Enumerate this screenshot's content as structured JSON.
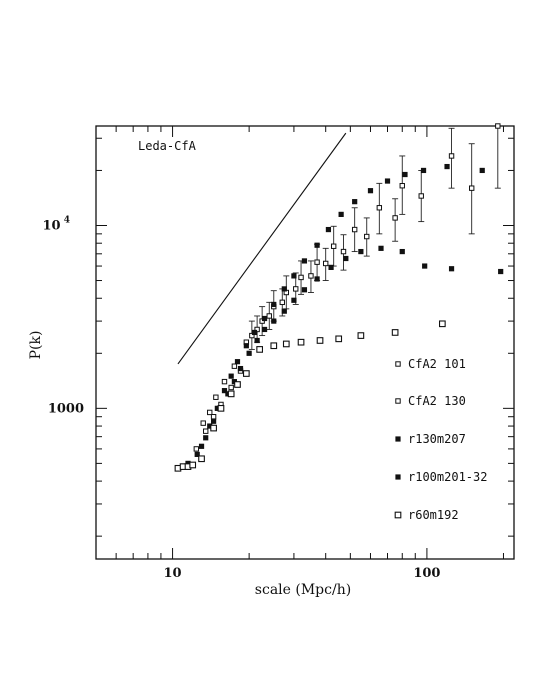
{
  "chart_data": {
    "type": "scatter",
    "title": "",
    "annotation": "Leda-CfA",
    "xlabel": "scale (Mpc/h)",
    "ylabel": "P(k)",
    "xscale": "log",
    "yscale": "log",
    "xlim": [
      5,
      220
    ],
    "ylim": [
      150,
      35000
    ],
    "x_ticks": [
      {
        "value": 10,
        "label": "10"
      },
      {
        "value": 100,
        "label": "100"
      }
    ],
    "y_ticks": [
      {
        "value": 1000,
        "label": "1000"
      },
      {
        "value": 10000,
        "label": "10",
        "exponent": "4"
      }
    ],
    "grid": false,
    "legend_position": "lower-right",
    "reference_line": {
      "x": [
        10.5,
        48
      ],
      "y": [
        1750,
        32000
      ]
    },
    "series": [
      {
        "name": "CfA2 101",
        "marker": "open-square-small",
        "points": [
          [
            13.2,
            830
          ],
          [
            14.0,
            950
          ],
          [
            14.8,
            1150
          ],
          [
            16.0,
            1400
          ],
          [
            17.5,
            1700
          ],
          [
            19.5,
            2300
          ],
          [
            21.5,
            2700
          ],
          [
            24.0,
            3200
          ],
          [
            27.0,
            3800
          ],
          [
            30.5,
            4500
          ],
          [
            35.0,
            5300
          ],
          [
            40.0,
            6200
          ],
          [
            47.0,
            7200
          ],
          [
            58.0,
            8700
          ],
          [
            75.0,
            11000
          ],
          [
            95.0,
            14500
          ],
          [
            125.0,
            24000
          ],
          [
            150.0,
            16000
          ],
          [
            190.0,
            35000
          ]
        ],
        "error_bars": [
          [
            21.5,
            2300,
            3200
          ],
          [
            24.0,
            2700,
            3800
          ],
          [
            27.0,
            3200,
            4500
          ],
          [
            30.5,
            3700,
            5500
          ],
          [
            35.0,
            4300,
            6400
          ],
          [
            40.0,
            5000,
            7500
          ],
          [
            47.0,
            5700,
            8900
          ],
          [
            58.0,
            6800,
            11000
          ],
          [
            75.0,
            8200,
            14000
          ],
          [
            95.0,
            10500,
            20000
          ],
          [
            125.0,
            16000,
            34000
          ],
          [
            150.0,
            9000,
            28000
          ],
          [
            190.0,
            16000,
            60000
          ]
        ]
      },
      {
        "name": "CfA2 130",
        "marker": "open-square-small",
        "points": [
          [
            12.4,
            600
          ],
          [
            13.5,
            750
          ],
          [
            14.5,
            900
          ],
          [
            15.5,
            1050
          ],
          [
            17.0,
            1300
          ],
          [
            18.5,
            1600
          ],
          [
            20.5,
            2500
          ],
          [
            22.5,
            3000
          ],
          [
            25.0,
            3600
          ],
          [
            28.0,
            4300
          ],
          [
            32.0,
            5200
          ],
          [
            37.0,
            6300
          ],
          [
            43.0,
            7700
          ],
          [
            52.0,
            9500
          ],
          [
            65.0,
            12500
          ],
          [
            80.0,
            16500
          ]
        ],
        "error_bars": [
          [
            20.5,
            2100,
            3000
          ],
          [
            22.5,
            2500,
            3600
          ],
          [
            25.0,
            3000,
            4400
          ],
          [
            28.0,
            3500,
            5300
          ],
          [
            32.0,
            4200,
            6400
          ],
          [
            37.0,
            5000,
            7900
          ],
          [
            43.0,
            6000,
            9900
          ],
          [
            52.0,
            7200,
            12500
          ],
          [
            65.0,
            9000,
            17000
          ],
          [
            80.0,
            11500,
            24000
          ]
        ]
      },
      {
        "name": "r130m207",
        "marker": "filled-square",
        "points": [
          [
            13.0,
            620
          ],
          [
            14.0,
            800
          ],
          [
            15.0,
            1000
          ],
          [
            16.0,
            1250
          ],
          [
            17.0,
            1500
          ],
          [
            18.0,
            1800
          ],
          [
            19.5,
            2200
          ],
          [
            21.0,
            2600
          ],
          [
            23.0,
            3100
          ],
          [
            25.0,
            3700
          ],
          [
            27.5,
            4500
          ],
          [
            30.0,
            5300
          ],
          [
            33.0,
            6400
          ],
          [
            37.0,
            7800
          ],
          [
            41.0,
            9500
          ],
          [
            46.0,
            11500
          ],
          [
            52.0,
            13500
          ],
          [
            60.0,
            15500
          ],
          [
            70.0,
            17500
          ],
          [
            82.0,
            19000
          ],
          [
            97.0,
            20000
          ],
          [
            120.0,
            21000
          ],
          [
            165.0,
            20000
          ]
        ]
      },
      {
        "name": "r100m201-32",
        "marker": "filled-square",
        "points": [
          [
            11.5,
            500
          ],
          [
            12.5,
            560
          ],
          [
            13.5,
            690
          ],
          [
            14.5,
            850
          ],
          [
            15.5,
            1000
          ],
          [
            16.5,
            1200
          ],
          [
            17.5,
            1400
          ],
          [
            18.5,
            1650
          ],
          [
            20.0,
            2000
          ],
          [
            21.5,
            2350
          ],
          [
            23.0,
            2700
          ],
          [
            25.0,
            3000
          ],
          [
            27.5,
            3400
          ],
          [
            30.0,
            3900
          ],
          [
            33.0,
            4450
          ],
          [
            37.0,
            5100
          ],
          [
            42.0,
            5900
          ],
          [
            48.0,
            6600
          ],
          [
            55.0,
            7200
          ],
          [
            66.0,
            7500
          ],
          [
            80.0,
            7200
          ],
          [
            98.0,
            6000
          ],
          [
            125.0,
            5800
          ],
          [
            195.0,
            5600
          ]
        ]
      },
      {
        "name": "r60m192",
        "marker": "open-square-large",
        "points": [
          [
            10.5,
            470
          ],
          [
            11.0,
            480
          ],
          [
            11.5,
            480
          ],
          [
            12.0,
            490
          ],
          [
            13.0,
            530
          ],
          [
            14.5,
            780
          ],
          [
            15.5,
            1000
          ],
          [
            17.0,
            1200
          ],
          [
            18.0,
            1350
          ],
          [
            19.5,
            1550
          ],
          [
            22.0,
            2100
          ],
          [
            25.0,
            2200
          ],
          [
            28.0,
            2250
          ],
          [
            32.0,
            2300
          ],
          [
            38.0,
            2350
          ],
          [
            45.0,
            2400
          ],
          [
            55.0,
            2500
          ],
          [
            75.0,
            2600
          ],
          [
            115.0,
            2900
          ]
        ]
      }
    ]
  }
}
